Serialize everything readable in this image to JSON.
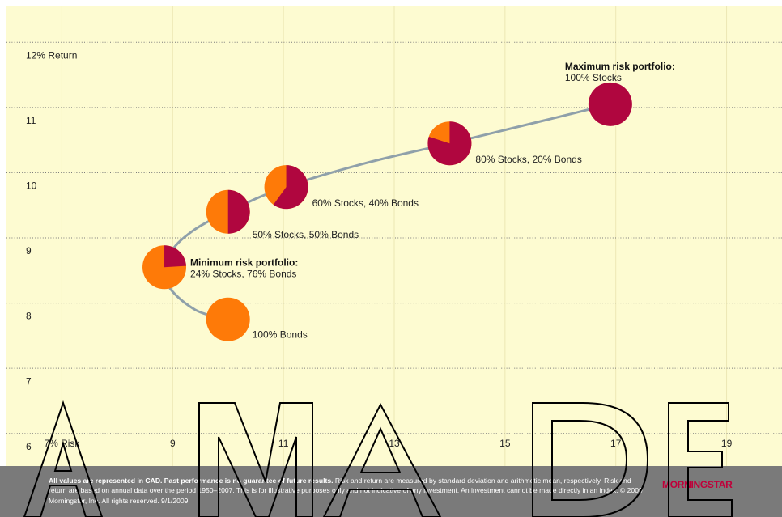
{
  "chart_data": {
    "type": "scatter",
    "x_tick_labels": [
      "7% Risk",
      "9",
      "11",
      "13",
      "15",
      "17",
      "19"
    ],
    "x_tick_values": [
      7,
      9,
      11,
      13,
      15,
      17,
      19
    ],
    "y_tick_labels": [
      "6",
      "7",
      "8",
      "9",
      "10",
      "11",
      "12% Return"
    ],
    "y_tick_values": [
      6,
      7,
      8,
      9,
      10,
      11,
      12
    ],
    "xlim": [
      6,
      20
    ],
    "ylim": [
      5.7,
      12.75
    ],
    "grid": true,
    "frontier": [
      {
        "x": 10.0,
        "y": 7.95
      },
      {
        "x": 9.4,
        "y": 8.1
      },
      {
        "x": 8.9,
        "y": 8.5
      },
      {
        "x": 8.95,
        "y": 8.95
      },
      {
        "x": 9.35,
        "y": 9.3
      },
      {
        "x": 10.0,
        "y": 9.6
      },
      {
        "x": 11.0,
        "y": 9.97
      },
      {
        "x": 12.5,
        "y": 10.35
      },
      {
        "x": 14.0,
        "y": 10.65
      },
      {
        "x": 15.7,
        "y": 11.0
      },
      {
        "x": 16.9,
        "y": 11.25
      }
    ],
    "portfolios": [
      {
        "x": 10.0,
        "y": 7.95,
        "stocks": 0,
        "label": "100% Bonds",
        "title": ""
      },
      {
        "x": 8.85,
        "y": 8.75,
        "stocks": 24,
        "label": "24% Stocks, 76% Bonds",
        "title": "Minimum risk portfolio:"
      },
      {
        "x": 10.0,
        "y": 9.6,
        "stocks": 50,
        "label": "50% Stocks, 50% Bonds",
        "title": ""
      },
      {
        "x": 11.05,
        "y": 9.98,
        "stocks": 60,
        "label": "60% Stocks, 40% Bonds",
        "title": ""
      },
      {
        "x": 14.0,
        "y": 10.65,
        "stocks": 80,
        "label": "80% Stocks, 20% Bonds",
        "title": ""
      },
      {
        "x": 16.9,
        "y": 11.25,
        "stocks": 100,
        "label": "100% Stocks",
        "title": "Maximum risk portfolio:"
      }
    ],
    "colors": {
      "stocks": "#b0063f",
      "bonds": "#fe7a08",
      "frontier": "#8fa0aa",
      "background": "#fdfbd1"
    }
  },
  "footer": {
    "bold_text": "All values are represented in CAD. Past performance is no guarantee of future results.",
    "text": " Risk and return are measured by standard deviation and arithmetic mean, respectively. Risk and return are based on annual data over the period 1950–2007. This is for illustrative purposes only and not indicative of any investment. An investment cannot be made directly in an index. © 2009 Morningstar, Inc. All rights reserved. 9/1/2009"
  },
  "logo": {
    "text": "MORNINGSTAR"
  },
  "watermark": {
    "text": "AMADEU"
  }
}
